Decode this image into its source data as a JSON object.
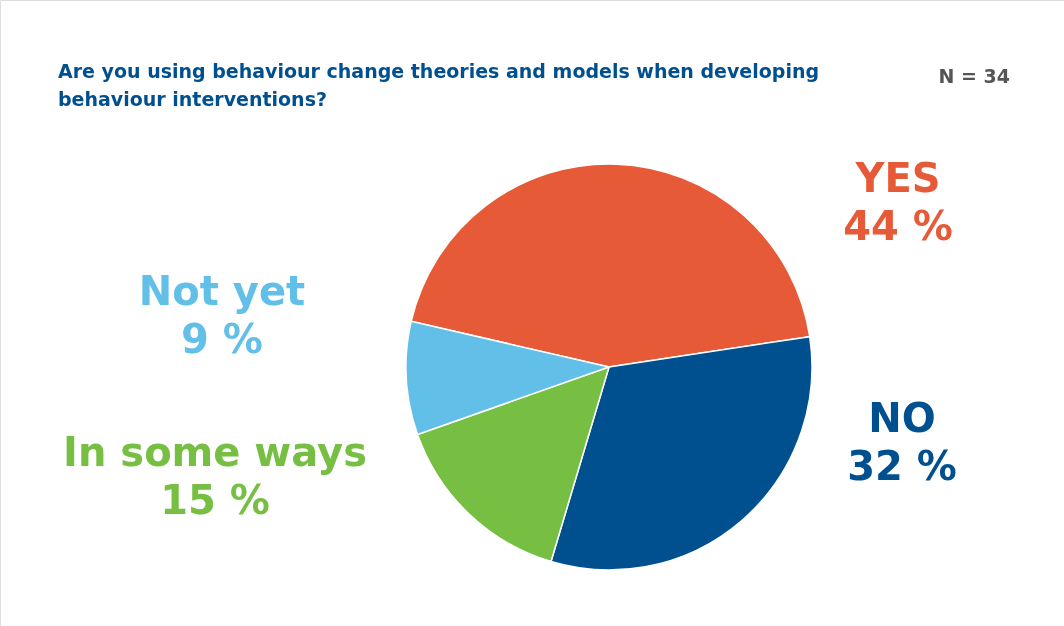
{
  "chart_data": {
    "type": "pie",
    "title": "Are you using behaviour change theories and models when developing behaviour interventions?",
    "annotations": [
      "N = 34"
    ],
    "categories": [
      "YES",
      "NO",
      "In some ways",
      "Not yet"
    ],
    "values": [
      44,
      32,
      15,
      9
    ],
    "value_labels": [
      "44 %",
      "32 %",
      "15 %",
      "9 %"
    ],
    "colors": [
      "#e65a37",
      "#00508f",
      "#76bf43",
      "#62bfe8"
    ],
    "legend": false
  }
}
